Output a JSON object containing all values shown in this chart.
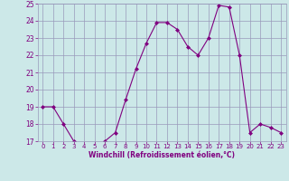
{
  "x": [
    0,
    1,
    2,
    3,
    4,
    5,
    6,
    7,
    8,
    9,
    10,
    11,
    12,
    13,
    14,
    15,
    16,
    17,
    18,
    19,
    20,
    21,
    22,
    23
  ],
  "y": [
    19.0,
    19.0,
    18.0,
    17.0,
    16.7,
    16.8,
    17.0,
    17.5,
    19.4,
    21.2,
    22.7,
    23.9,
    23.9,
    23.5,
    22.5,
    22.0,
    23.0,
    24.9,
    24.8,
    22.0,
    17.5,
    18.0,
    17.8,
    17.5
  ],
  "ylim": [
    17,
    25
  ],
  "yticks": [
    17,
    18,
    19,
    20,
    21,
    22,
    23,
    24,
    25
  ],
  "xticks": [
    0,
    1,
    2,
    3,
    4,
    5,
    6,
    7,
    8,
    9,
    10,
    11,
    12,
    13,
    14,
    15,
    16,
    17,
    18,
    19,
    20,
    21,
    22,
    23
  ],
  "xlabel": "Windchill (Refroidissement éolien,°C)",
  "line_color": "#800080",
  "marker_color": "#800080",
  "bg_color": "#cce8e8",
  "grid_color": "#9999bb",
  "label_color": "#800080"
}
